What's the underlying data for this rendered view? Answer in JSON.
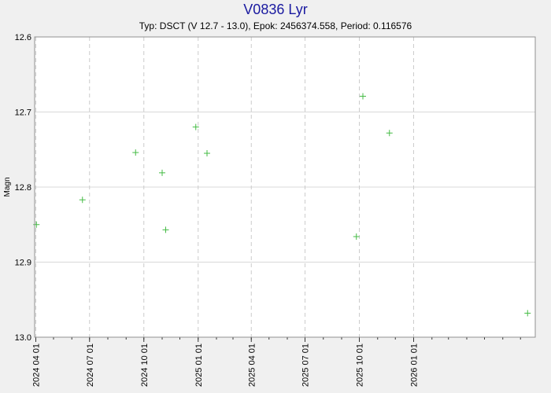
{
  "chart_data": {
    "type": "scatter",
    "title": "V0836 Lyr",
    "subtitle": "Typ: DSCT (V 12.7 - 13.0), Epok: 2456374.558, Period: 0.116576",
    "ylabel": "Magn",
    "xlabel": "",
    "y_inverted": true,
    "ylim": [
      12.6,
      13.0
    ],
    "y_ticks": [
      "12.6",
      "12.7",
      "12.8",
      "12.9",
      "13.0"
    ],
    "xlim": [
      "2024-03-30",
      "2026-07-26"
    ],
    "x_ticks": [
      "2024 04 01",
      "2024 07 01",
      "2024 10 01",
      "2025 01 01",
      "2025 04 01",
      "2025 07 01",
      "2025 10 01",
      "2026 01 01"
    ],
    "grid": true,
    "marker": "+",
    "colors": {
      "points": "#44bb44",
      "title": "#1a1aa0",
      "grid_h": "#d8d8d8",
      "grid_v": "#cccccc",
      "plot_bg": "#ffffff",
      "page_bg": "#f0f0f0"
    },
    "points": [
      {
        "x": "2024-04-02",
        "y": 12.85
      },
      {
        "x": "2024-06-19",
        "y": 12.817
      },
      {
        "x": "2024-09-17",
        "y": 12.754
      },
      {
        "x": "2024-11-01",
        "y": 12.781
      },
      {
        "x": "2024-11-07",
        "y": 12.857
      },
      {
        "x": "2024-12-28",
        "y": 12.72
      },
      {
        "x": "2025-01-16",
        "y": 12.755
      },
      {
        "x": "2025-09-26",
        "y": 12.866
      },
      {
        "x": "2025-10-07",
        "y": 12.679
      },
      {
        "x": "2025-11-21",
        "y": 12.728
      },
      {
        "x": "2026-07-13",
        "y": 12.968
      }
    ]
  }
}
